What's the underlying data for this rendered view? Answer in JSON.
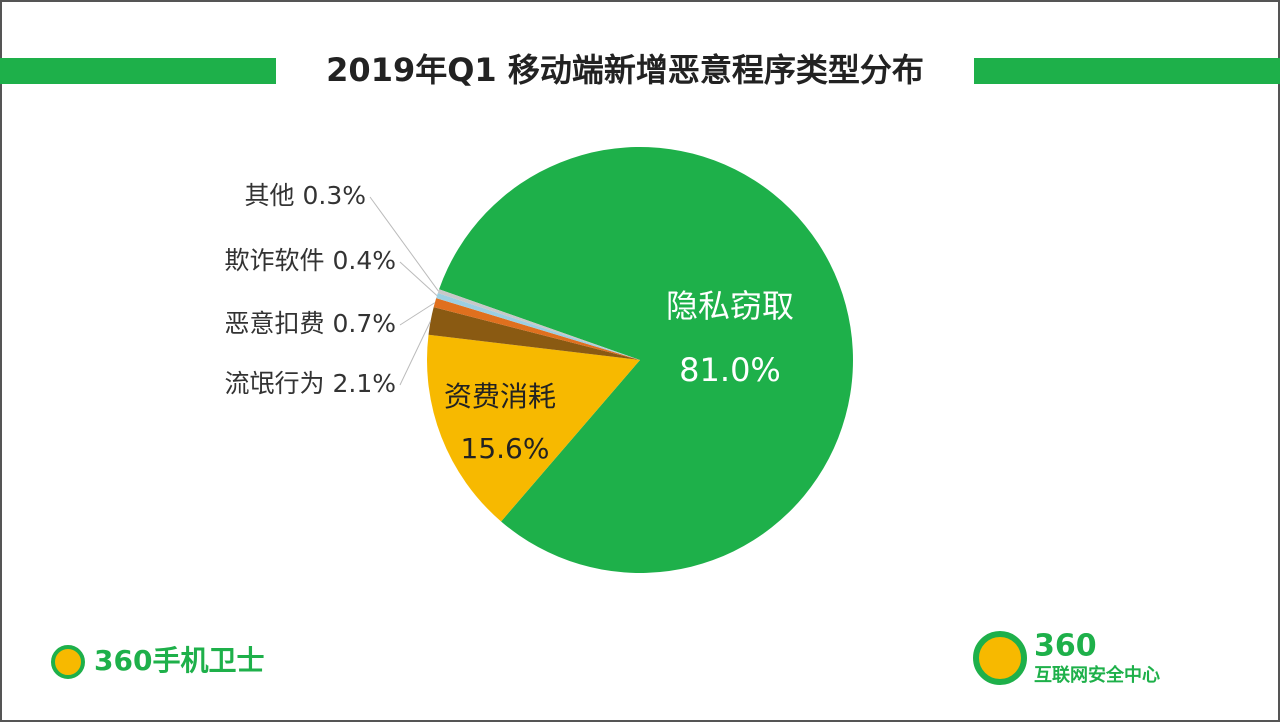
{
  "chart_data": {
    "type": "pie",
    "title": "2019年Q1 移动端新增恶意程序类型分布",
    "categories": [
      "隐私窃取",
      "资费消耗",
      "流氓行为",
      "恶意扣费",
      "欺诈软件",
      "其他"
    ],
    "values": [
      81.0,
      15.6,
      2.1,
      0.7,
      0.4,
      0.3
    ],
    "value_labels": [
      "81.0%",
      "15.6%",
      "2.1%",
      "0.7%",
      "0.4%",
      "0.3%"
    ],
    "colors": [
      "#1eb04a",
      "#f7b900",
      "#8a5a12",
      "#e0701e",
      "#9ccfe2",
      "#c8c8c8"
    ]
  },
  "footer": {
    "left_logo": "360手机卫士",
    "right_logo_number": "360",
    "right_logo_text": "互联网安全中心"
  }
}
